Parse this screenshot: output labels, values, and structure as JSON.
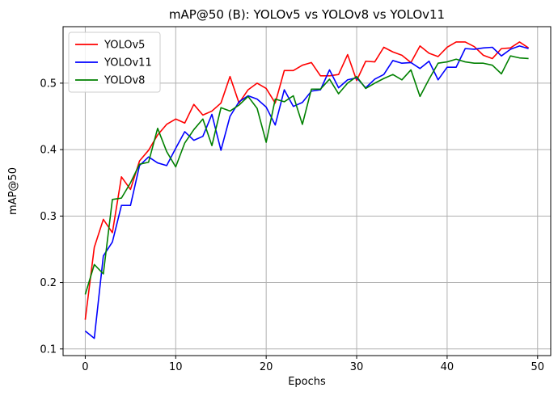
{
  "chart_data": {
    "type": "line",
    "title": "mAP@50 (B): YOLOv5 vs YOLOv8 vs YOLOv11",
    "xlabel": "Epochs",
    "ylabel": "mAP@50",
    "xlim": [
      -2.45,
      51.45
    ],
    "ylim": [
      0.09,
      0.585
    ],
    "xticks": [
      0,
      10,
      20,
      30,
      40,
      50
    ],
    "yticks": [
      0.1,
      0.2,
      0.3,
      0.4,
      0.5
    ],
    "xtick_labels": [
      "0",
      "10",
      "20",
      "30",
      "40",
      "50"
    ],
    "ytick_labels": [
      "0.1",
      "0.2",
      "0.3",
      "0.4",
      "0.5"
    ],
    "grid": true,
    "legend_position": "top-left",
    "x": [
      0,
      1,
      2,
      3,
      4,
      5,
      6,
      7,
      8,
      9,
      10,
      11,
      12,
      13,
      14,
      15,
      16,
      17,
      18,
      19,
      20,
      21,
      22,
      23,
      24,
      25,
      26,
      27,
      28,
      29,
      30,
      31,
      32,
      33,
      34,
      35,
      36,
      37,
      38,
      39,
      40,
      41,
      42,
      43,
      44,
      45,
      46,
      47,
      48,
      49
    ],
    "series": [
      {
        "name": "YOLOv5",
        "color": "#ff0000",
        "values": [
          0.144,
          0.253,
          0.295,
          0.275,
          0.359,
          0.34,
          0.383,
          0.399,
          0.422,
          0.438,
          0.446,
          0.44,
          0.468,
          0.452,
          0.458,
          0.47,
          0.51,
          0.47,
          0.49,
          0.5,
          0.492,
          0.47,
          0.519,
          0.519,
          0.527,
          0.531,
          0.511,
          0.511,
          0.513,
          0.543,
          0.504,
          0.533,
          0.532,
          0.554,
          0.547,
          0.542,
          0.531,
          0.556,
          0.545,
          0.54,
          0.554,
          0.562,
          0.562,
          0.555,
          0.542,
          0.537,
          0.552,
          0.553,
          0.562,
          0.553
        ]
      },
      {
        "name": "YOLOv11",
        "color": "#0000ff",
        "values": [
          0.127,
          0.116,
          0.24,
          0.261,
          0.316,
          0.316,
          0.376,
          0.389,
          0.38,
          0.376,
          0.402,
          0.427,
          0.414,
          0.42,
          0.453,
          0.399,
          0.45,
          0.472,
          0.481,
          0.476,
          0.464,
          0.437,
          0.49,
          0.465,
          0.471,
          0.488,
          0.49,
          0.52,
          0.493,
          0.505,
          0.508,
          0.493,
          0.506,
          0.513,
          0.534,
          0.53,
          0.531,
          0.522,
          0.533,
          0.505,
          0.524,
          0.524,
          0.552,
          0.551,
          0.553,
          0.554,
          0.541,
          0.551,
          0.556,
          0.552
        ]
      },
      {
        "name": "YOLOv8",
        "color": "#008000",
        "values": [
          0.182,
          0.227,
          0.213,
          0.325,
          0.327,
          0.35,
          0.378,
          0.381,
          0.432,
          0.397,
          0.374,
          0.41,
          0.43,
          0.446,
          0.406,
          0.463,
          0.458,
          0.467,
          0.48,
          0.462,
          0.411,
          0.476,
          0.472,
          0.481,
          0.438,
          0.491,
          0.491,
          0.506,
          0.484,
          0.5,
          0.51,
          0.492,
          0.5,
          0.507,
          0.513,
          0.505,
          0.52,
          0.48,
          0.506,
          0.53,
          0.532,
          0.536,
          0.532,
          0.53,
          0.53,
          0.527,
          0.514,
          0.541,
          0.538,
          0.537
        ]
      }
    ]
  }
}
